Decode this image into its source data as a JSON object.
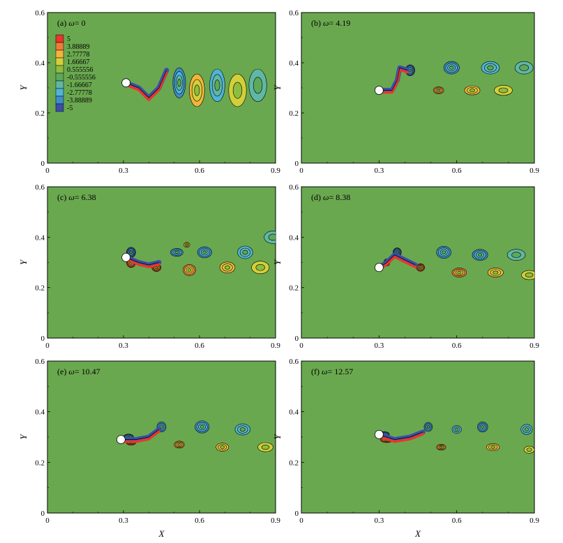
{
  "colors": {
    "background": "#6aa84f",
    "contour_line": "#000000",
    "cylinder": "#ffffff"
  },
  "chart_data": {
    "type": "contour",
    "xlabel": "X",
    "ylabel": "Y",
    "xlim": [
      0,
      0.9
    ],
    "ylim": [
      0,
      0.6
    ],
    "xticks": [
      "0",
      "0.3",
      "0.6",
      "0.9"
    ],
    "yticks": [
      "0",
      "0.2",
      "0.4",
      "0.6"
    ],
    "legend": {
      "placement": "top-left of panel (a)",
      "levels": [
        {
          "label": "5",
          "color": "#e8362b"
        },
        {
          "label": "3.88889",
          "color": "#f07a3a"
        },
        {
          "label": "2.77778",
          "color": "#f2b43c"
        },
        {
          "label": "1.66667",
          "color": "#d3cf3a"
        },
        {
          "label": "0.555556",
          "color": "#8dbd3e"
        },
        {
          "label": "-0.555556",
          "color": "#5ea85a"
        },
        {
          "label": "-1.66667",
          "color": "#5fb7a6"
        },
        {
          "label": "-2.77778",
          "color": "#4fb4d8"
        },
        {
          "label": "-3.88889",
          "color": "#3f8cc9"
        },
        {
          "label": "-5",
          "color": "#3a4fa8"
        }
      ]
    },
    "panels": [
      {
        "label_prefix": "(a)",
        "omega_text": "= 0",
        "cylinder": {
          "x": 0.31,
          "y": 0.32
        },
        "path": [
          [
            0.31,
            0.32
          ],
          [
            0.36,
            0.3
          ],
          [
            0.4,
            0.26
          ],
          [
            0.44,
            0.3
          ],
          [
            0.47,
            0.37
          ]
        ],
        "vortices": [
          {
            "x": 0.52,
            "y": 0.32,
            "sign": -1,
            "strength": 0.7,
            "rx": 0.025,
            "ry": 0.06
          },
          {
            "x": 0.59,
            "y": 0.29,
            "sign": 1,
            "strength": 0.55,
            "rx": 0.03,
            "ry": 0.065
          },
          {
            "x": 0.67,
            "y": 0.31,
            "sign": -1,
            "strength": 0.55,
            "rx": 0.03,
            "ry": 0.065
          },
          {
            "x": 0.75,
            "y": 0.29,
            "sign": 1,
            "strength": 0.35,
            "rx": 0.035,
            "ry": 0.065
          },
          {
            "x": 0.83,
            "y": 0.31,
            "sign": -1,
            "strength": 0.35,
            "rx": 0.035,
            "ry": 0.065
          }
        ]
      },
      {
        "label_prefix": "(b)",
        "omega_text": "= 4.19",
        "cylinder": {
          "x": 0.3,
          "y": 0.29
        },
        "path": [
          [
            0.3,
            0.29
          ],
          [
            0.35,
            0.29
          ],
          [
            0.37,
            0.33
          ],
          [
            0.38,
            0.38
          ],
          [
            0.41,
            0.37
          ]
        ],
        "vortices": [
          {
            "x": 0.42,
            "y": 0.37,
            "sign": -1,
            "strength": 1.0,
            "rx": 0.018,
            "ry": 0.022
          },
          {
            "x": 0.53,
            "y": 0.29,
            "sign": 1,
            "strength": 0.8,
            "rx": 0.02,
            "ry": 0.014
          },
          {
            "x": 0.58,
            "y": 0.38,
            "sign": -1,
            "strength": 0.85,
            "rx": 0.03,
            "ry": 0.025
          },
          {
            "x": 0.66,
            "y": 0.29,
            "sign": 1,
            "strength": 0.6,
            "rx": 0.03,
            "ry": 0.018
          },
          {
            "x": 0.73,
            "y": 0.38,
            "sign": -1,
            "strength": 0.65,
            "rx": 0.035,
            "ry": 0.025
          },
          {
            "x": 0.78,
            "y": 0.29,
            "sign": 1,
            "strength": 0.4,
            "rx": 0.035,
            "ry": 0.02
          },
          {
            "x": 0.86,
            "y": 0.38,
            "sign": -1,
            "strength": 0.4,
            "rx": 0.035,
            "ry": 0.025
          }
        ]
      },
      {
        "label_prefix": "(c)",
        "omega_text": "= 6.38",
        "cylinder": {
          "x": 0.31,
          "y": 0.32
        },
        "path": [
          [
            0.31,
            0.32
          ],
          [
            0.36,
            0.3
          ],
          [
            0.4,
            0.29
          ],
          [
            0.44,
            0.3
          ]
        ],
        "vortices": [
          {
            "x": 0.33,
            "y": 0.34,
            "sign": -1,
            "strength": 1.0,
            "rx": 0.018,
            "ry": 0.02
          },
          {
            "x": 0.33,
            "y": 0.3,
            "sign": 1,
            "strength": 1.0,
            "rx": 0.018,
            "ry": 0.02
          },
          {
            "x": 0.43,
            "y": 0.28,
            "sign": 1,
            "strength": 0.9,
            "rx": 0.018,
            "ry": 0.016
          },
          {
            "x": 0.51,
            "y": 0.34,
            "sign": -1,
            "strength": 0.8,
            "rx": 0.025,
            "ry": 0.016
          },
          {
            "x": 0.55,
            "y": 0.37,
            "sign": 1,
            "strength": 0.6,
            "rx": 0.012,
            "ry": 0.01
          },
          {
            "x": 0.56,
            "y": 0.27,
            "sign": 1,
            "strength": 0.8,
            "rx": 0.025,
            "ry": 0.022
          },
          {
            "x": 0.62,
            "y": 0.34,
            "sign": -1,
            "strength": 0.75,
            "rx": 0.028,
            "ry": 0.022
          },
          {
            "x": 0.71,
            "y": 0.28,
            "sign": 1,
            "strength": 0.6,
            "rx": 0.03,
            "ry": 0.022
          },
          {
            "x": 0.78,
            "y": 0.34,
            "sign": -1,
            "strength": 0.5,
            "rx": 0.03,
            "ry": 0.025
          },
          {
            "x": 0.84,
            "y": 0.28,
            "sign": 1,
            "strength": 0.35,
            "rx": 0.035,
            "ry": 0.025
          },
          {
            "x": 0.89,
            "y": 0.4,
            "sign": -1,
            "strength": 0.35,
            "rx": 0.035,
            "ry": 0.025
          }
        ]
      },
      {
        "label_prefix": "(d)",
        "omega_text": "= 8.38",
        "cylinder": {
          "x": 0.3,
          "y": 0.28
        },
        "path": [
          [
            0.3,
            0.28
          ],
          [
            0.33,
            0.3
          ],
          [
            0.36,
            0.33
          ],
          [
            0.4,
            0.31
          ],
          [
            0.44,
            0.29
          ]
        ],
        "vortices": [
          {
            "x": 0.37,
            "y": 0.34,
            "sign": -1,
            "strength": 1.0,
            "rx": 0.016,
            "ry": 0.018
          },
          {
            "x": 0.33,
            "y": 0.3,
            "sign": 1,
            "strength": 1.0,
            "rx": 0.012,
            "ry": 0.014
          },
          {
            "x": 0.46,
            "y": 0.28,
            "sign": 1,
            "strength": 0.9,
            "rx": 0.016,
            "ry": 0.015
          },
          {
            "x": 0.55,
            "y": 0.34,
            "sign": -1,
            "strength": 0.85,
            "rx": 0.028,
            "ry": 0.024
          },
          {
            "x": 0.61,
            "y": 0.26,
            "sign": 1,
            "strength": 0.8,
            "rx": 0.028,
            "ry": 0.018
          },
          {
            "x": 0.69,
            "y": 0.33,
            "sign": -1,
            "strength": 0.7,
            "rx": 0.03,
            "ry": 0.022
          },
          {
            "x": 0.75,
            "y": 0.26,
            "sign": 1,
            "strength": 0.6,
            "rx": 0.03,
            "ry": 0.018
          },
          {
            "x": 0.83,
            "y": 0.33,
            "sign": -1,
            "strength": 0.45,
            "rx": 0.035,
            "ry": 0.022
          },
          {
            "x": 0.88,
            "y": 0.25,
            "sign": 1,
            "strength": 0.35,
            "rx": 0.03,
            "ry": 0.018
          }
        ]
      },
      {
        "label_prefix": "(e)",
        "omega_text": "= 10.47",
        "cylinder": {
          "x": 0.29,
          "y": 0.29
        },
        "path": [
          [
            0.29,
            0.29
          ],
          [
            0.35,
            0.29
          ],
          [
            0.4,
            0.3
          ],
          [
            0.44,
            0.33
          ]
        ],
        "vortices": [
          {
            "x": 0.33,
            "y": 0.28,
            "sign": 1,
            "strength": 1.0,
            "rx": 0.02,
            "ry": 0.012
          },
          {
            "x": 0.32,
            "y": 0.3,
            "sign": -1,
            "strength": 1.0,
            "rx": 0.02,
            "ry": 0.012
          },
          {
            "x": 0.45,
            "y": 0.34,
            "sign": -1,
            "strength": 0.85,
            "rx": 0.018,
            "ry": 0.02
          },
          {
            "x": 0.52,
            "y": 0.27,
            "sign": 1,
            "strength": 0.8,
            "rx": 0.02,
            "ry": 0.014
          },
          {
            "x": 0.61,
            "y": 0.34,
            "sign": -1,
            "strength": 0.8,
            "rx": 0.028,
            "ry": 0.024
          },
          {
            "x": 0.69,
            "y": 0.26,
            "sign": 1,
            "strength": 0.65,
            "rx": 0.025,
            "ry": 0.016
          },
          {
            "x": 0.77,
            "y": 0.33,
            "sign": -1,
            "strength": 0.65,
            "rx": 0.03,
            "ry": 0.022
          },
          {
            "x": 0.86,
            "y": 0.26,
            "sign": 1,
            "strength": 0.4,
            "rx": 0.03,
            "ry": 0.018
          }
        ]
      },
      {
        "label_prefix": "(f)",
        "omega_text": "= 12.57",
        "cylinder": {
          "x": 0.3,
          "y": 0.31
        },
        "path": [
          [
            0.3,
            0.31
          ],
          [
            0.36,
            0.29
          ],
          [
            0.42,
            0.3
          ],
          [
            0.47,
            0.32
          ]
        ],
        "vortices": [
          {
            "x": 0.33,
            "y": 0.29,
            "sign": 1,
            "strength": 1.0,
            "rx": 0.025,
            "ry": 0.012
          },
          {
            "x": 0.32,
            "y": 0.31,
            "sign": -1,
            "strength": 1.0,
            "rx": 0.02,
            "ry": 0.012
          },
          {
            "x": 0.49,
            "y": 0.34,
            "sign": -1,
            "strength": 0.85,
            "rx": 0.016,
            "ry": 0.018
          },
          {
            "x": 0.54,
            "y": 0.26,
            "sign": 1,
            "strength": 0.7,
            "rx": 0.018,
            "ry": 0.012
          },
          {
            "x": 0.6,
            "y": 0.33,
            "sign": -1,
            "strength": 0.6,
            "rx": 0.018,
            "ry": 0.016
          },
          {
            "x": 0.7,
            "y": 0.34,
            "sign": -1,
            "strength": 0.7,
            "rx": 0.02,
            "ry": 0.02
          },
          {
            "x": 0.74,
            "y": 0.26,
            "sign": 1,
            "strength": 0.6,
            "rx": 0.025,
            "ry": 0.014
          },
          {
            "x": 0.87,
            "y": 0.33,
            "sign": -1,
            "strength": 0.5,
            "rx": 0.022,
            "ry": 0.02
          },
          {
            "x": 0.88,
            "y": 0.25,
            "sign": 1,
            "strength": 0.3,
            "rx": 0.02,
            "ry": 0.014
          }
        ]
      }
    ]
  }
}
